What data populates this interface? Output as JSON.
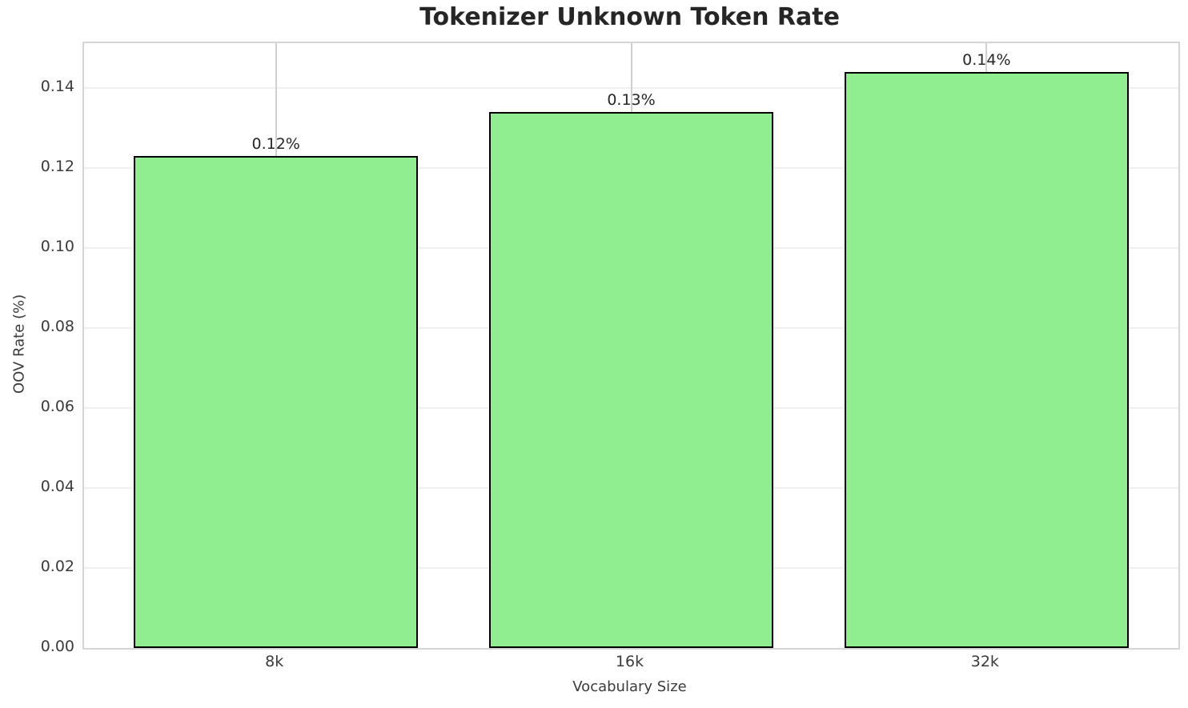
{
  "chart_data": {
    "type": "bar",
    "title": "Tokenizer Unknown Token Rate",
    "xlabel": "Vocabulary Size",
    "ylabel": "OOV Rate (%)",
    "categories": [
      "8k",
      "16k",
      "32k"
    ],
    "values": [
      0.123,
      0.134,
      0.144
    ],
    "bar_labels": [
      "0.12%",
      "0.13%",
      "0.14%"
    ],
    "yticks": [
      0.0,
      0.02,
      0.04,
      0.06,
      0.08,
      0.1,
      0.12,
      0.14
    ],
    "ytick_labels": [
      "0.00",
      "0.02",
      "0.04",
      "0.06",
      "0.08",
      "0.10",
      "0.12",
      "0.14"
    ],
    "ylim": [
      0,
      0.1512
    ],
    "grid": true,
    "legend": "none",
    "bar_color": "#90EE90",
    "bar_edge_color": "#000000"
  },
  "colors": {
    "background": "#ffffff",
    "grid_horizontal": "#f0f0f0",
    "grid_vertical": "#d0d0d0",
    "spine": "#d5d5d5",
    "title_text": "#262626",
    "tick_text": "#3b3b3b"
  }
}
